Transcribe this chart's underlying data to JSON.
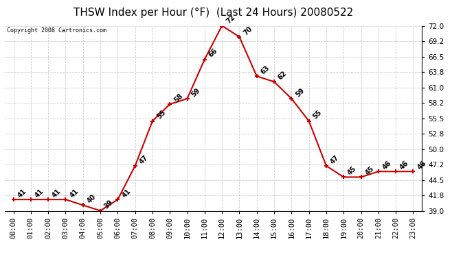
{
  "title": "THSW Index per Hour (°F)  (Last 24 Hours) 20080522",
  "copyright": "Copyright 2008 Cartronics.com",
  "hours": [
    "00:00",
    "01:00",
    "02:00",
    "03:00",
    "04:00",
    "05:00",
    "06:00",
    "07:00",
    "08:00",
    "09:00",
    "10:00",
    "11:00",
    "12:00",
    "13:00",
    "14:00",
    "15:00",
    "16:00",
    "17:00",
    "18:00",
    "19:00",
    "20:00",
    "21:00",
    "22:00",
    "23:00"
  ],
  "values": [
    41,
    41,
    41,
    41,
    40,
    39,
    41,
    47,
    55,
    58,
    59,
    66,
    72,
    70,
    63,
    62,
    59,
    55,
    47,
    45,
    45,
    46,
    46,
    46
  ],
  "ylim": [
    39.0,
    72.0
  ],
  "yticks": [
    39.0,
    41.8,
    44.5,
    47.2,
    50.0,
    52.8,
    55.5,
    58.2,
    61.0,
    63.8,
    66.5,
    69.2,
    72.0
  ],
  "line_color": "#cc0000",
  "marker": "+",
  "marker_color": "#cc0000",
  "bg_color": "#ffffff",
  "grid_color": "#cccccc",
  "title_fontsize": 11,
  "label_fontsize": 7.5,
  "annotation_fontsize": 7,
  "copyright_fontsize": 6
}
